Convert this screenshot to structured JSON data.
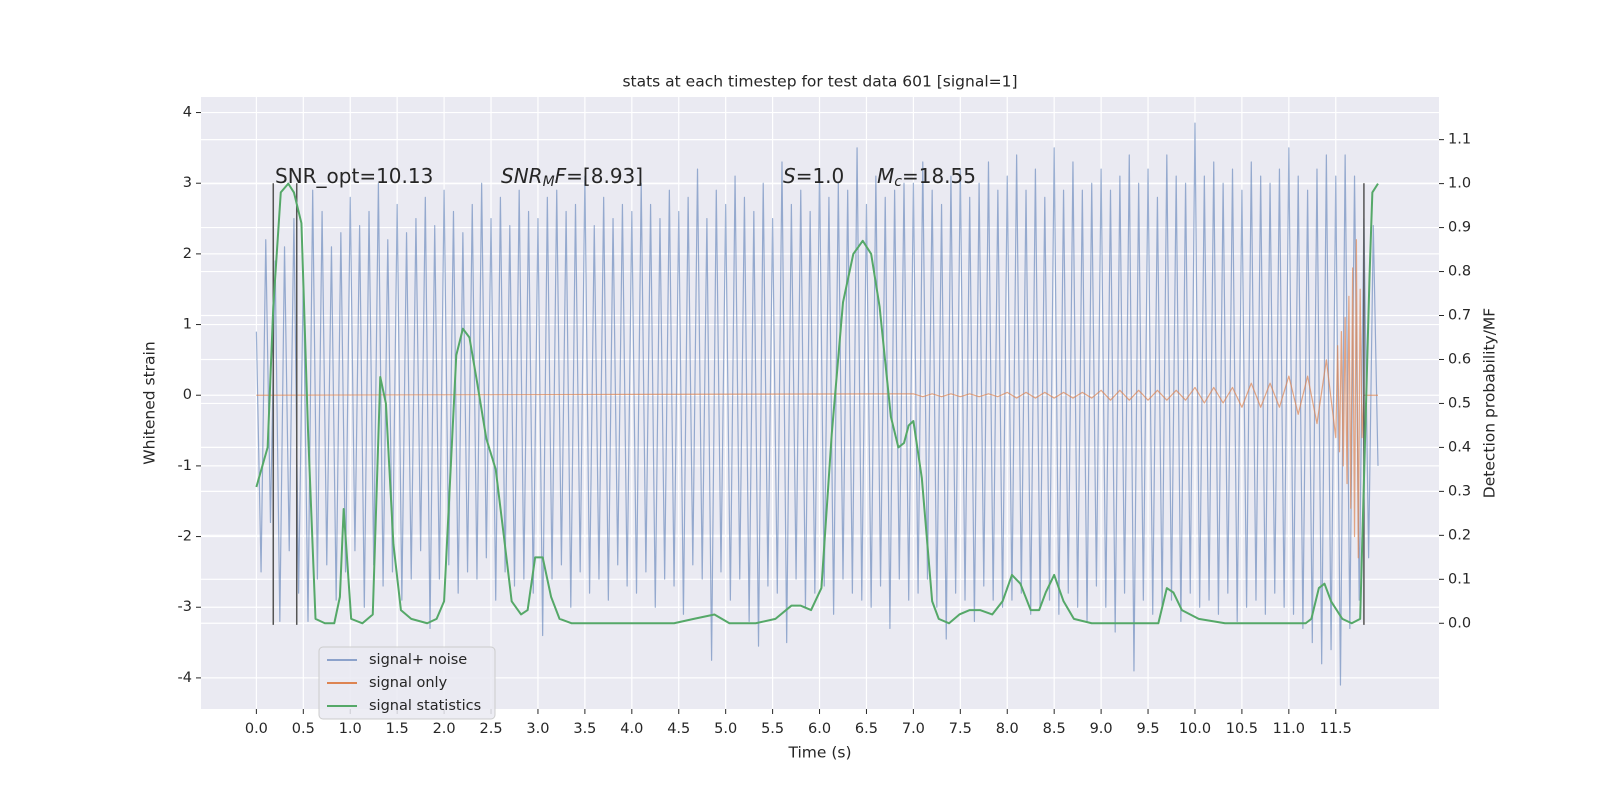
{
  "chart_data": {
    "type": "line",
    "title": "stats at each timestep for test data 601 [signal=1]",
    "xlabel": "Time (s)",
    "ylabel": "Whitened strain",
    "y2label": "Detection probability/MF",
    "xlim": [
      -0.59,
      12.6
    ],
    "ylim": [
      -4.44,
      4.22
    ],
    "y2lim": [
      -0.195,
      1.197
    ],
    "xticks": [
      {
        "value": 0,
        "label": "0.0"
      },
      0.5,
      {
        "value": 1,
        "label": "1.0"
      },
      1.5,
      {
        "value": 2,
        "label": "2.0"
      },
      2.5,
      {
        "value": 3,
        "label": "3.0"
      },
      3.5,
      {
        "value": 4,
        "label": "4.0"
      },
      4.5,
      {
        "value": 5,
        "label": "5.0"
      },
      5.5,
      {
        "value": 6,
        "label": "6.0"
      },
      6.5,
      {
        "value": 7,
        "label": "7.0"
      },
      7.5,
      {
        "value": 8,
        "label": "8.0"
      },
      8.5,
      {
        "value": 9,
        "label": "9.0"
      },
      9.5,
      {
        "value": 10,
        "label": "10.0"
      },
      10.5,
      {
        "value": 11,
        "label": "11.0"
      },
      11.5
    ],
    "yticks": [
      -4,
      -3,
      -2,
      -1,
      0,
      1,
      2,
      3,
      4
    ],
    "y2ticks": [
      {
        "value": 0,
        "label": "0.0"
      },
      0.1,
      0.2,
      0.3,
      0.4,
      0.5,
      0.6,
      0.7,
      0.8,
      0.9,
      {
        "value": 1,
        "label": "1.0"
      },
      1.1
    ],
    "grid": true,
    "legend": "lower left",
    "series": [
      {
        "name": "signal+ noise",
        "color": "#4c72b0",
        "x": [
          0,
          0.05,
          0.1,
          0.15,
          0.2,
          0.25,
          0.3,
          0.35,
          0.4,
          0.45,
          0.5,
          0.55,
          0.6,
          0.65,
          0.7,
          0.75,
          0.8,
          0.85,
          0.9,
          0.95,
          1,
          1.05,
          1.1,
          1.15,
          1.2,
          1.25,
          1.3,
          1.35,
          1.4,
          1.45,
          1.5,
          1.55,
          1.6,
          1.65,
          1.7,
          1.75,
          1.8,
          1.85,
          1.9,
          1.95,
          2,
          2.05,
          2.1,
          2.15,
          2.2,
          2.25,
          2.3,
          2.35,
          2.4,
          2.45,
          2.5,
          2.55,
          2.6,
          2.65,
          2.7,
          2.75,
          2.8,
          2.85,
          2.9,
          2.95,
          3,
          3.05,
          3.1,
          3.15,
          3.2,
          3.25,
          3.3,
          3.35,
          3.4,
          3.45,
          3.5,
          3.55,
          3.6,
          3.65,
          3.7,
          3.75,
          3.8,
          3.85,
          3.9,
          3.95,
          4,
          4.05,
          4.1,
          4.15,
          4.2,
          4.25,
          4.3,
          4.35,
          4.4,
          4.45,
          4.5,
          4.55,
          4.6,
          4.65,
          4.7,
          4.75,
          4.8,
          4.85,
          4.9,
          4.95,
          5,
          5.05,
          5.1,
          5.15,
          5.2,
          5.25,
          5.3,
          5.35,
          5.4,
          5.45,
          5.5,
          5.55,
          5.6,
          5.65,
          5.7,
          5.75,
          5.8,
          5.85,
          5.9,
          5.95,
          6,
          6.05,
          6.1,
          6.15,
          6.2,
          6.25,
          6.3,
          6.35,
          6.4,
          6.45,
          6.5,
          6.55,
          6.6,
          6.65,
          6.7,
          6.75,
          6.8,
          6.85,
          6.9,
          6.95,
          7,
          7.05,
          7.1,
          7.15,
          7.2,
          7.25,
          7.3,
          7.35,
          7.4,
          7.45,
          7.5,
          7.55,
          7.6,
          7.65,
          7.7,
          7.75,
          7.8,
          7.85,
          7.9,
          7.95,
          8,
          8.05,
          8.1,
          8.15,
          8.2,
          8.25,
          8.3,
          8.35,
          8.4,
          8.45,
          8.5,
          8.55,
          8.6,
          8.65,
          8.7,
          8.75,
          8.8,
          8.85,
          8.9,
          8.95,
          9,
          9.05,
          9.1,
          9.15,
          9.2,
          9.25,
          9.3,
          9.35,
          9.4,
          9.45,
          9.5,
          9.55,
          9.6,
          9.65,
          9.7,
          9.75,
          9.8,
          9.85,
          9.9,
          9.95,
          10,
          10.05,
          10.1,
          10.15,
          10.2,
          10.25,
          10.3,
          10.35,
          10.4,
          10.45,
          10.5,
          10.55,
          10.6,
          10.65,
          10.7,
          10.75,
          10.8,
          10.85,
          10.9,
          10.95,
          11,
          11.05,
          11.1,
          11.15,
          11.2,
          11.25,
          11.3,
          11.35,
          11.4,
          11.45,
          11.5,
          11.55,
          11.6,
          11.65,
          11.7,
          11.75,
          11.8,
          11.85,
          11.9,
          11.95
        ],
        "values": [
          0.9,
          -2.5,
          2.2,
          -1.8,
          1.9,
          -3.2,
          2.1,
          -2.2,
          2.5,
          -2.8,
          1.7,
          -3.2,
          2.9,
          -2.6,
          2.6,
          -2.4,
          2.1,
          -2.9,
          2.3,
          -2.5,
          2.8,
          -2.2,
          2.4,
          -3.0,
          2.6,
          -2.4,
          3.0,
          -2.7,
          2.2,
          -2.5,
          2.7,
          -2.9,
          2.3,
          -2.6,
          2.5,
          -2.2,
          2.8,
          -3.3,
          2.4,
          -2.6,
          2.9,
          -2.4,
          2.6,
          -2.8,
          2.3,
          -2.5,
          2.7,
          -2.6,
          3.0,
          -2.3,
          2.5,
          -2.9,
          2.8,
          -2.5,
          2.4,
          -2.7,
          2.9,
          -2.6,
          2.6,
          -2.8,
          2.5,
          -3.4,
          2.8,
          -2.6,
          2.9,
          -2.4,
          2.6,
          -3.0,
          2.7,
          -2.5,
          3.1,
          -2.8,
          2.4,
          -2.6,
          2.8,
          -2.9,
          2.5,
          -2.4,
          2.7,
          -2.7,
          2.6,
          -2.8,
          3.0,
          -2.5,
          2.7,
          -3.0,
          2.5,
          -2.6,
          2.9,
          -2.7,
          2.6,
          -3.1,
          2.8,
          -2.4,
          3.2,
          -2.6,
          2.5,
          -3.75,
          2.9,
          -2.5,
          2.7,
          -2.9,
          3.1,
          -2.6,
          2.8,
          -3.2,
          2.6,
          -3.55,
          3.0,
          -2.7,
          2.5,
          -2.8,
          3.3,
          -3.5,
          2.7,
          -2.6,
          2.9,
          -3.0,
          2.6,
          -2.8,
          3.2,
          -2.7,
          2.8,
          -3.1,
          3.0,
          -2.6,
          2.9,
          -2.8,
          3.5,
          -2.9,
          2.7,
          -3.0,
          3.1,
          -2.7,
          2.8,
          -3.3,
          2.9,
          -2.6,
          3.0,
          -2.9,
          3.0,
          -2.8,
          3.3,
          -2.6,
          2.9,
          -3.0,
          2.7,
          -3.45,
          3.1,
          -2.8,
          3.2,
          -2.9,
          2.8,
          -3.2,
          3.0,
          -2.7,
          3.3,
          -2.9,
          2.9,
          -3.0,
          3.1,
          -2.9,
          3.4,
          -2.8,
          2.9,
          -3.1,
          3.2,
          -3.0,
          2.8,
          -2.9,
          3.5,
          -3.1,
          2.9,
          -2.8,
          3.3,
          -3.0,
          2.9,
          -3.2,
          3.0,
          -2.7,
          3.2,
          -3.0,
          2.9,
          -3.35,
          3.1,
          -2.8,
          3.4,
          -3.9,
          3.0,
          -2.9,
          3.2,
          -3.1,
          2.8,
          -3.0,
          3.4,
          -2.9,
          3.1,
          -3.2,
          3.0,
          -2.8,
          3.85,
          -3.0,
          3.1,
          -2.9,
          3.3,
          -3.1,
          3.0,
          -2.8,
          3.2,
          -3.2,
          2.9,
          -3.0,
          3.3,
          -2.9,
          3.1,
          -3.1,
          3.0,
          -2.8,
          3.2,
          -3.0,
          3.5,
          -3.1,
          3.1,
          -3.3,
          2.9,
          -3.5,
          3.2,
          -3.8,
          3.4,
          -3.6,
          3.1,
          -4.1,
          3.4,
          -3.3,
          3.1,
          -2.9,
          2.5,
          -2.3,
          2.4,
          -1.0
        ]
      },
      {
        "name": "signal only",
        "color": "#dd8452",
        "x": [
          0,
          7.0,
          7.1,
          7.2,
          7.3,
          7.4,
          7.5,
          7.6,
          7.7,
          7.8,
          7.9,
          8.0,
          8.1,
          8.2,
          8.3,
          8.4,
          8.5,
          8.6,
          8.7,
          8.8,
          8.9,
          9.0,
          9.1,
          9.2,
          9.3,
          9.4,
          9.5,
          9.6,
          9.7,
          9.8,
          9.9,
          10.0,
          10.1,
          10.2,
          10.3,
          10.4,
          10.5,
          10.6,
          10.7,
          10.8,
          10.9,
          11.0,
          11.1,
          11.2,
          11.3,
          11.4,
          11.5,
          11.52,
          11.54,
          11.56,
          11.58,
          11.6,
          11.62,
          11.64,
          11.66,
          11.68,
          11.7,
          11.72,
          11.74,
          11.76,
          11.78,
          11.8,
          11.95
        ],
        "values": [
          0,
          0.02,
          -0.02,
          0.02,
          -0.02,
          0.02,
          -0.02,
          0.02,
          -0.02,
          0.02,
          -0.02,
          0.04,
          -0.04,
          0.04,
          -0.04,
          0.04,
          -0.04,
          0.04,
          -0.04,
          0.04,
          -0.04,
          0.07,
          -0.07,
          0.07,
          -0.07,
          0.07,
          -0.07,
          0.07,
          -0.07,
          0.07,
          -0.07,
          0.11,
          -0.11,
          0.11,
          -0.11,
          0.11,
          -0.17,
          0.17,
          -0.17,
          0.17,
          -0.17,
          0.27,
          -0.27,
          0.27,
          -0.4,
          0.5,
          -0.6,
          0.7,
          -0.8,
          0.9,
          -1.0,
          1.1,
          -1.25,
          1.4,
          -1.6,
          1.8,
          -2.0,
          2.2,
          -2.3,
          1.5,
          -0.6,
          0,
          0
        ]
      },
      {
        "name": "signal statistics",
        "color": "#55a868",
        "axis": "y2",
        "x": [
          0,
          0.12,
          0.18,
          0.26,
          0.34,
          0.4,
          0.48,
          0.55,
          0.63,
          0.73,
          0.83,
          0.89,
          0.93,
          1.01,
          1.13,
          1.24,
          1.32,
          1.38,
          1.46,
          1.54,
          1.65,
          1.82,
          1.92,
          2.0,
          2.13,
          2.2,
          2.27,
          2.35,
          2.45,
          2.55,
          2.63,
          2.72,
          2.82,
          2.89,
          2.97,
          3.05,
          3.14,
          3.23,
          3.36,
          3.79,
          4.45,
          4.66,
          4.88,
          5.04,
          5.32,
          5.53,
          5.7,
          5.8,
          5.91,
          6.02,
          6.13,
          6.25,
          6.36,
          6.46,
          6.55,
          6.64,
          6.76,
          6.84,
          6.9,
          6.95,
          7.0,
          7.09,
          7.2,
          7.27,
          7.38,
          7.49,
          7.6,
          7.71,
          7.84,
          7.95,
          8.05,
          8.14,
          8.25,
          8.34,
          8.41,
          8.5,
          8.6,
          8.71,
          8.9,
          9.61,
          9.7,
          9.77,
          9.86,
          10.04,
          10.32,
          11.18,
          11.24,
          11.32,
          11.38,
          11.45,
          11.57,
          11.67,
          11.76,
          11.86,
          11.89,
          11.95
        ],
        "values": [
          0.31,
          0.4,
          0.72,
          0.98,
          1.0,
          0.98,
          0.91,
          0.44,
          0.01,
          0.0,
          0.0,
          0.06,
          0.26,
          0.01,
          0.0,
          0.02,
          0.56,
          0.5,
          0.18,
          0.03,
          0.01,
          0.0,
          0.01,
          0.05,
          0.61,
          0.67,
          0.65,
          0.55,
          0.42,
          0.35,
          0.21,
          0.05,
          0.02,
          0.03,
          0.15,
          0.15,
          0.06,
          0.01,
          0.0,
          0.0,
          0.0,
          0.01,
          0.02,
          0.0,
          0.0,
          0.01,
          0.04,
          0.04,
          0.03,
          0.08,
          0.43,
          0.73,
          0.84,
          0.87,
          0.84,
          0.72,
          0.47,
          0.4,
          0.41,
          0.45,
          0.46,
          0.33,
          0.05,
          0.01,
          0.0,
          0.02,
          0.03,
          0.03,
          0.02,
          0.05,
          0.11,
          0.09,
          0.03,
          0.03,
          0.07,
          0.11,
          0.05,
          0.01,
          0.0,
          0.0,
          0.08,
          0.07,
          0.03,
          0.01,
          0.0,
          0.0,
          0.01,
          0.08,
          0.09,
          0.05,
          0.01,
          0.0,
          0.01,
          0.79,
          0.98,
          1.0
        ]
      }
    ],
    "vlines": [
      {
        "x": 0.18,
        "ymin": -3.25,
        "ymax": 3.0,
        "color": "#555555"
      },
      {
        "x": 0.43,
        "ymin": -3.25,
        "ymax": 3.0,
        "color": "#555555"
      },
      {
        "x": 11.8,
        "ymin": -3.25,
        "ymax": 3.0,
        "color": "#555555"
      }
    ],
    "annotations": [
      {
        "parts": [
          {
            "text": "SNR_opt=10.13"
          }
        ]
      },
      {
        "parts": [
          {
            "text": "SNR",
            "style": "italic"
          },
          {
            "text": "M",
            "style": "sub"
          },
          {
            "text": "F",
            "style": "italic"
          },
          {
            "text": "=[8.93]"
          }
        ]
      },
      {
        "parts": [
          {
            "text": "S",
            "style": "italic"
          },
          {
            "text": "=1.0"
          }
        ]
      },
      {
        "parts": [
          {
            "text": "M",
            "style": "italic"
          },
          {
            "text": "c",
            "style": "sub"
          },
          {
            "text": "=18.55"
          }
        ]
      }
    ]
  }
}
